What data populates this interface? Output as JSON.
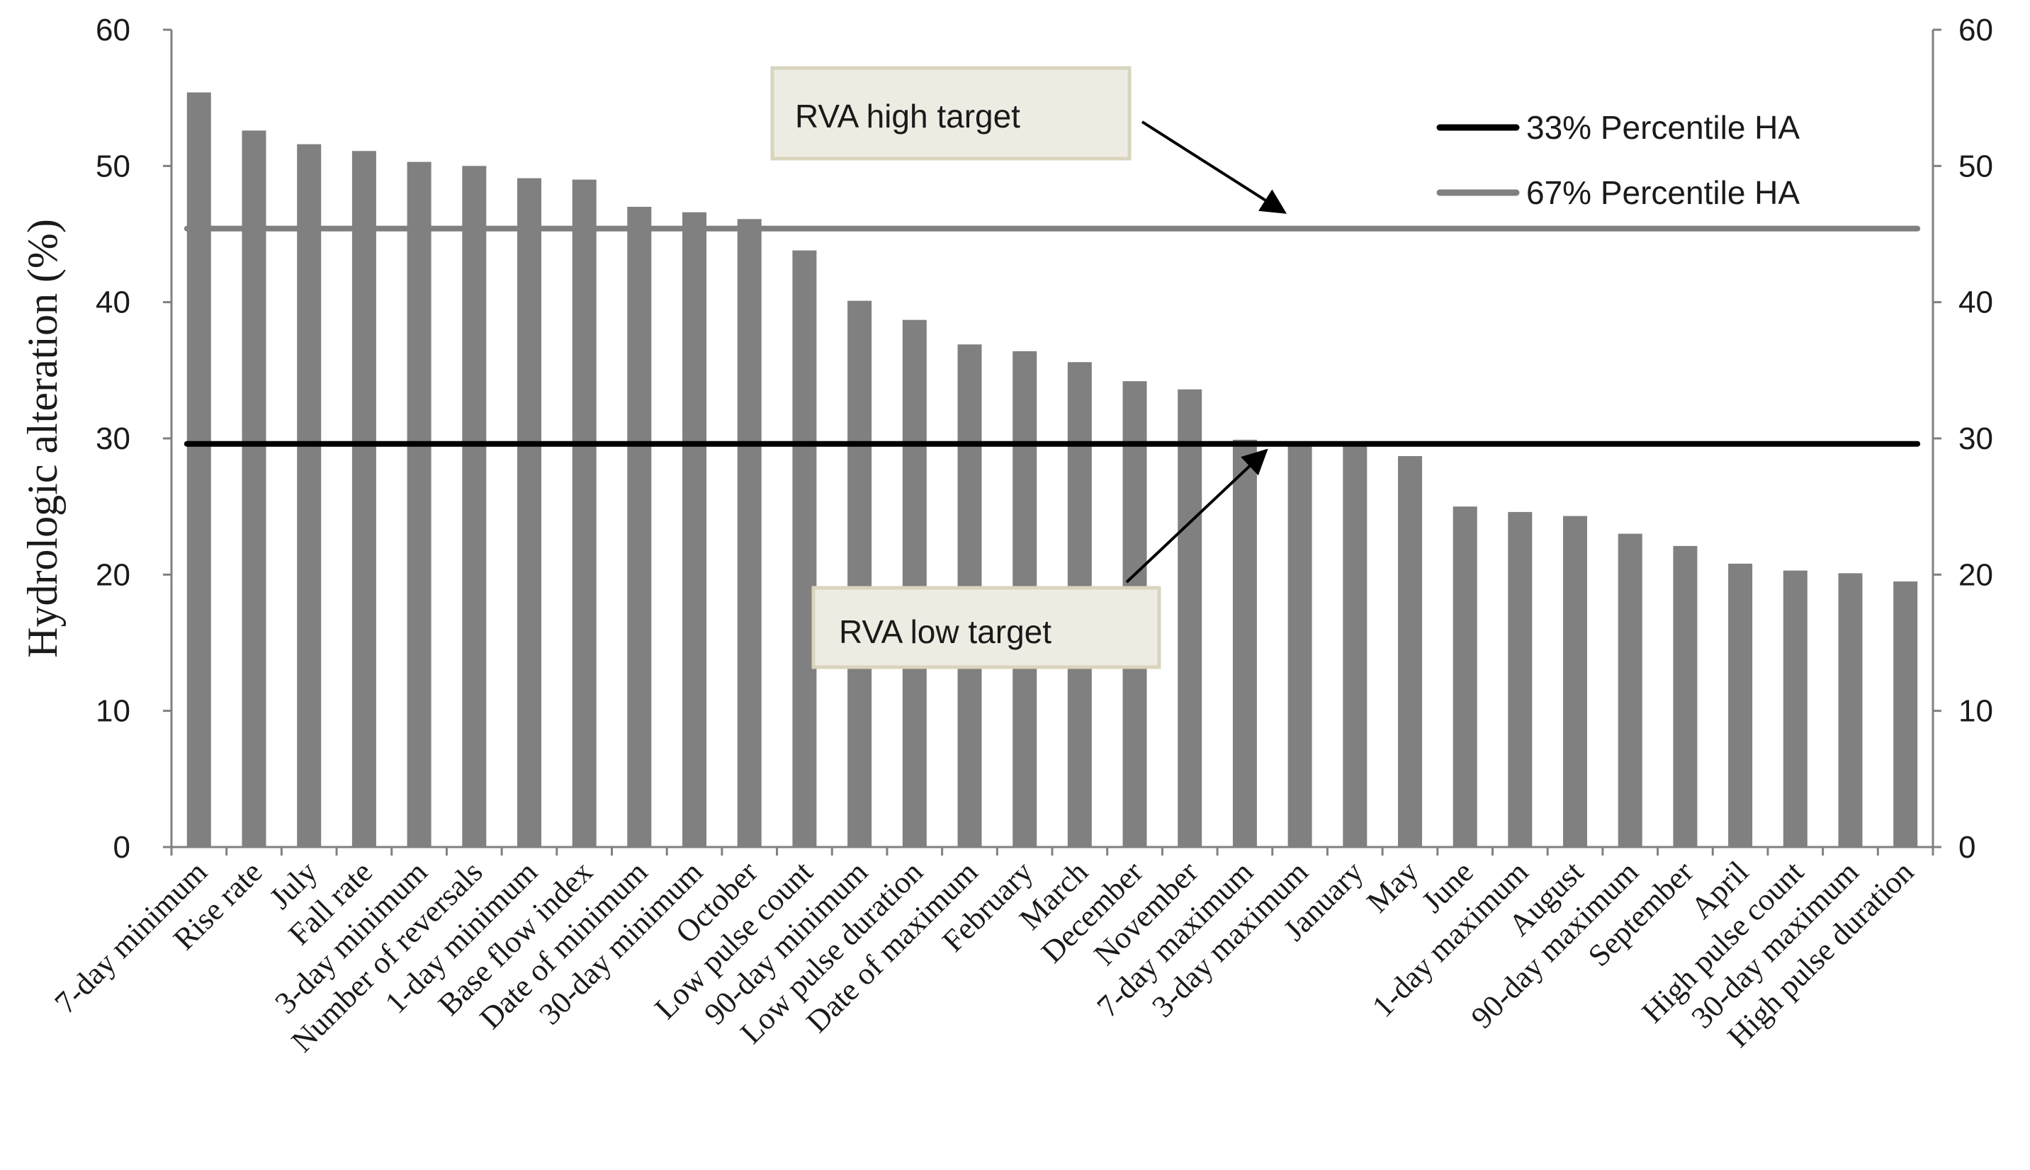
{
  "chart_data": {
    "type": "bar",
    "title": "",
    "xlabel": "",
    "ylabel": "Hydrologic  alteration  (%)",
    "ylim": [
      0,
      60
    ],
    "yticks": [
      0,
      10,
      20,
      30,
      40,
      50,
      60
    ],
    "y_ticks_mirrored_right": true,
    "grid": false,
    "bar_color": "#808080",
    "categories": [
      "7-day minimum",
      "Rise rate",
      "July",
      "Fall rate",
      "3-day minimum",
      "Number of reversals",
      "1-day minimum",
      "Base flow index",
      "Date of minimum",
      "30-day minimum",
      "October",
      "Low pulse count",
      "90-day minimum",
      "Low pulse duration",
      "Date of maximum",
      "February",
      "March",
      "December",
      "November",
      "7-day maximum",
      "3-day maximum",
      "January",
      "May",
      "June",
      "1-day maximum",
      "August",
      "90-day maximum",
      "September",
      "April",
      "High pulse count",
      "30-day maximum",
      "High pulse duration"
    ],
    "values": [
      55.4,
      52.6,
      51.6,
      51.1,
      50.3,
      50.0,
      49.1,
      49.0,
      47.0,
      46.6,
      46.1,
      43.8,
      40.1,
      38.7,
      36.9,
      36.4,
      35.6,
      34.2,
      33.6,
      29.9,
      29.6,
      29.5,
      28.7,
      25.0,
      24.6,
      24.3,
      23.0,
      22.1,
      20.8,
      20.3,
      20.1,
      19.5
    ],
    "reference_lines": [
      {
        "name": "33% Percentile HA",
        "value": 29.6,
        "color": "#000000"
      },
      {
        "name": "67% Percentile HA",
        "value": 45.4,
        "color": "#808080"
      }
    ],
    "legend": {
      "position": "top-right",
      "entries": [
        {
          "label": "33% Percentile HA",
          "color": "#000000"
        },
        {
          "label": "67% Percentile HA",
          "color": "#808080"
        }
      ]
    },
    "annotations": [
      {
        "label": "RVA high target",
        "points_to": "67% Percentile HA"
      },
      {
        "label": "RVA low target",
        "points_to": "33% Percentile HA"
      }
    ]
  }
}
